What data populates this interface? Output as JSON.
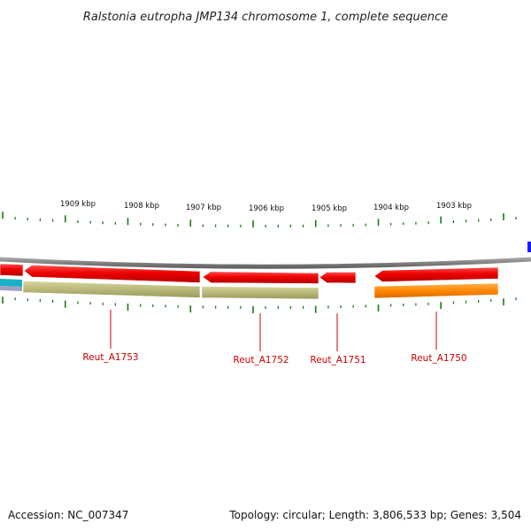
{
  "title": "Ralstonia eutropha JMP134 chromosome 1, complete sequence",
  "scale_labels": [
    "1909 kbp",
    "1908 kbp",
    "1907 kbp",
    "1906 kbp",
    "1905 kbp",
    "1904 kbp",
    "1903 kbp"
  ],
  "gene_labels": [
    "Reut_A1753",
    "Reut_A1752",
    "Reut_A1751",
    "Reut_A1750"
  ],
  "footer": {
    "accession": "Accession: NC_007347",
    "topology": "Topology: circular; Length: 3,806,533 bp; Genes: 3,504"
  },
  "colors": {
    "forward_cds": "#ee0000",
    "reverse_cds_olive": "#b8b878",
    "reverse_cds_orange": "#ff8800",
    "backbone": "#888888",
    "ticks": "#1a7a1a",
    "cyan_feature": "#19b0c8",
    "blue_feature": "#1a1aff",
    "gene_label": "#cc0000"
  }
}
